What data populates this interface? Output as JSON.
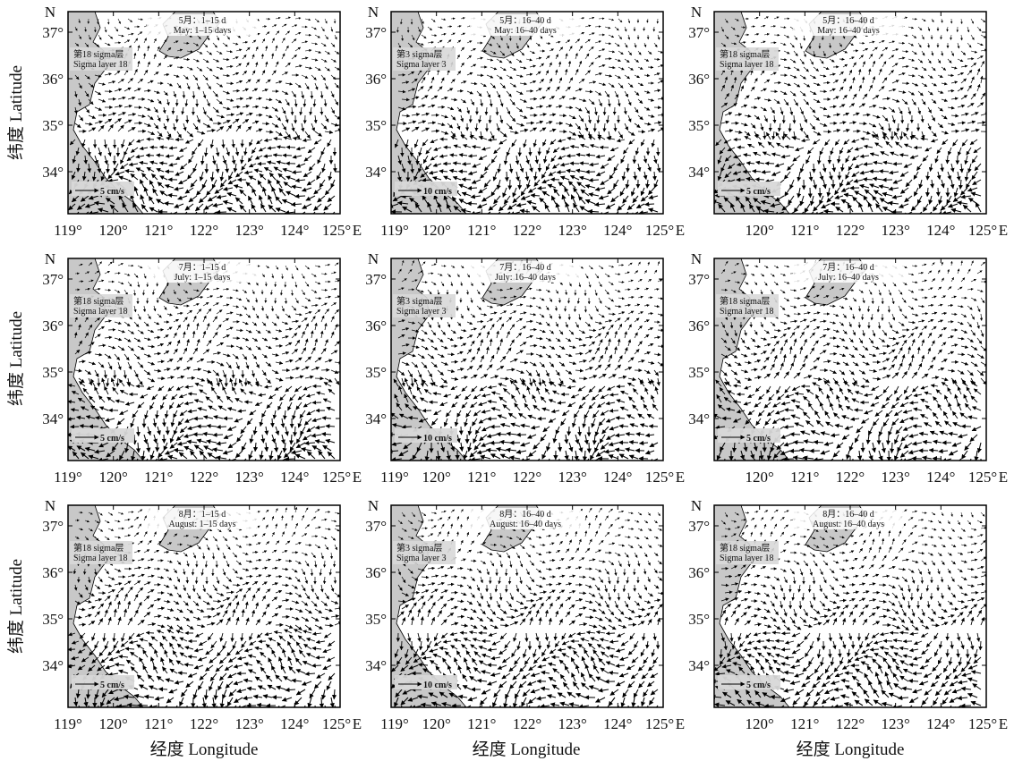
{
  "figure": {
    "ylabel": "纬度 Latitude",
    "xlabel": "经度 Longitude",
    "north_label": "N",
    "east_label": "E",
    "lon_ticks": [
      "119°",
      "120°",
      "121°",
      "122°",
      "123°",
      "124°",
      "125°"
    ],
    "lat_ticks": [
      "37°",
      "36°",
      "35°",
      "34°"
    ],
    "colors": {
      "land": "#c8c8c8",
      "sea": "#ffffff",
      "arrow": "#000000",
      "frame": "#000000"
    }
  },
  "panels": [
    {
      "period_cn": "5月：1–15 d",
      "period_en": "May: 1–15 days",
      "layer_cn": "第18 sigma层",
      "layer_en": "Sigma layer 18",
      "scale": "5 cm/s"
    },
    {
      "period_cn": "5月：16–40 d",
      "period_en": "May: 16–40 days",
      "layer_cn": "第3 sigma层",
      "layer_en": "Sigma layer 3",
      "scale": "10 cm/s"
    },
    {
      "period_cn": "5月：16–40 d",
      "period_en": "May: 16–40 days",
      "layer_cn": "第18 sigma层",
      "layer_en": "Sigma layer 18",
      "scale": "5 cm/s"
    },
    {
      "period_cn": "7月：1–15 d",
      "period_en": "July: 1–15 days",
      "layer_cn": "第18 sigma层",
      "layer_en": "Sigma layer 18",
      "scale": "5 cm/s"
    },
    {
      "period_cn": "7月：16–40 d",
      "period_en": "July: 16–40 days",
      "layer_cn": "第3 sigma层",
      "layer_en": "Sigma layer 3",
      "scale": "10 cm/s"
    },
    {
      "period_cn": "7月：16–40 d",
      "period_en": "July: 16–40 days",
      "layer_cn": "第18 sigma层",
      "layer_en": "Sigma layer 18",
      "scale": "5 cm/s"
    },
    {
      "period_cn": "8月：1–15 d",
      "period_en": "August: 1–15 days",
      "layer_cn": "第18 sigma层",
      "layer_en": "Sigma layer 18",
      "scale": "5 cm/s"
    },
    {
      "period_cn": "8月：16–40 d",
      "period_en": "August: 16–40 days",
      "layer_cn": "第3 sigma层",
      "layer_en": "Sigma layer 3",
      "scale": "10 cm/s"
    },
    {
      "period_cn": "8月：16–40 d",
      "period_en": "August: 16–40 days",
      "layer_cn": "第18 sigma层",
      "layer_en": "Sigma layer 18",
      "scale": "5 cm/s"
    }
  ]
}
